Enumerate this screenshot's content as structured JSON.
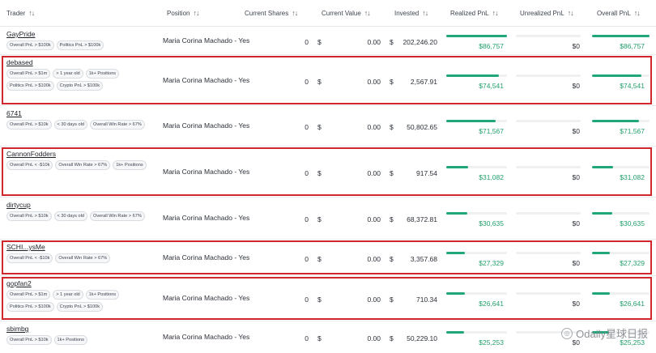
{
  "columns": {
    "trader": "Trader",
    "position": "Position",
    "current_shares": "Current Shares",
    "current_value": "Current Value",
    "invested": "Invested",
    "realized_pnl": "Realized PnL",
    "unrealized_pnl": "Unrealized PnL",
    "overall_pnl": "Overall PnL"
  },
  "sort_icon": "sort-arrows-icon",
  "rows": [
    {
      "name": "GayPride",
      "badges": [
        "Overall PnL > $100k",
        "Politics PnL > $100k"
      ],
      "position": "Maria Corina Machado - Yes",
      "shares": "0",
      "dollar": "$",
      "value": "0.00",
      "invested": "202,246.20",
      "realized": "$86,757",
      "realized_fill": 1.0,
      "unrealized": "$0",
      "overall": "$86,757",
      "overall_fill": 1.0,
      "highlight": false
    },
    {
      "name": "debased",
      "badges": [
        "Overall PnL > $1m",
        "> 1 year old",
        "1k+ Positions",
        "Politics PnL > $100k",
        "Crypto PnL > $100k"
      ],
      "position": "Maria Corina Machado - Yes",
      "shares": "0",
      "dollar": "$",
      "value": "0.00",
      "invested": "2,567.91",
      "realized": "$74,541",
      "realized_fill": 0.86,
      "unrealized": "$0",
      "overall": "$74,541",
      "overall_fill": 0.86,
      "highlight": true
    },
    {
      "name": "6741",
      "badges": [
        "Overall PnL > $10k",
        "< 30 days old",
        "Overall Win Rate > 67%"
      ],
      "position": "Maria Corina Machado - Yes",
      "shares": "0",
      "dollar": "$",
      "value": "0.00",
      "invested": "50,802.65",
      "realized": "$71,567",
      "realized_fill": 0.82,
      "unrealized": "$0",
      "overall": "$71,567",
      "overall_fill": 0.82,
      "highlight": false
    },
    {
      "name": "CannonFodders",
      "badges": [
        "Overall PnL < -$10k",
        "Overall Win Rate > 67%",
        "1k+ Positions"
      ],
      "position": "Maria Corina Machado - Yes",
      "shares": "0",
      "dollar": "$",
      "value": "0.00",
      "invested": "917.54",
      "realized": "$31,082",
      "realized_fill": 0.36,
      "unrealized": "$0",
      "overall": "$31,082",
      "overall_fill": 0.36,
      "highlight": true
    },
    {
      "name": "dirtycup",
      "badges": [
        "Overall PnL > $10k",
        "< 30 days old",
        "Overall Win Rate > 67%"
      ],
      "position": "Maria Corina Machado - Yes",
      "shares": "0",
      "dollar": "$",
      "value": "0.00",
      "invested": "68,372.81",
      "realized": "$30,635",
      "realized_fill": 0.35,
      "unrealized": "$0",
      "overall": "$30,635",
      "overall_fill": 0.35,
      "highlight": false
    },
    {
      "name": "SCHI...ysMe",
      "badges": [
        "Overall PnL < -$10k",
        "Overall Win Rate > 67%"
      ],
      "position": "Maria Corina Machado - Yes",
      "shares": "0",
      "dollar": "$",
      "value": "0.00",
      "invested": "3,357.68",
      "realized": "$27,329",
      "realized_fill": 0.31,
      "unrealized": "$0",
      "overall": "$27,329",
      "overall_fill": 0.31,
      "highlight": true
    },
    {
      "name": "gopfan2",
      "badges": [
        "Overall PnL > $1m",
        "> 1 year old",
        "1k+ Positions",
        "Politics PnL > $100k",
        "Crypto PnL > $100k"
      ],
      "position": "Maria Corina Machado - Yes",
      "shares": "0",
      "dollar": "$",
      "value": "0.00",
      "invested": "710.34",
      "realized": "$26,641",
      "realized_fill": 0.31,
      "unrealized": "$0",
      "overall": "$26,641",
      "overall_fill": 0.31,
      "highlight": true
    },
    {
      "name": "sbimbg",
      "badges": [
        "Overall PnL > $10k",
        "1k+ Positions"
      ],
      "position": "Maria Corina Machado - Yes",
      "shares": "0",
      "dollar": "$",
      "value": "0.00",
      "invested": "50,229.10",
      "realized": "$25,253",
      "realized_fill": 0.29,
      "unrealized": "$0",
      "overall": "$25,253",
      "overall_fill": 0.29,
      "highlight": false
    }
  ],
  "watermark": "Odaily星球日报",
  "watermark_icon": "odaily-logo-icon"
}
